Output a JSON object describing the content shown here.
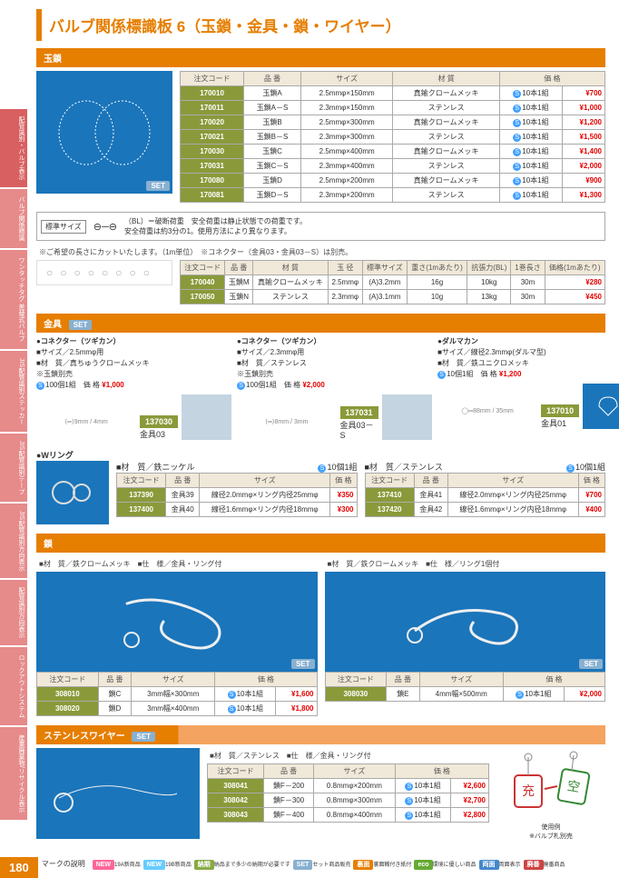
{
  "title": "バルブ関係標識板 6（玉鎖・金具・鎖・ワイヤー）",
  "sidebar": [
    "バルブ関係標識",
    "ワンタッチタグ 差替式バルブ",
    "JIS配管識別ステッカー",
    "JIS配管識別テープ",
    "JIS配管識別方向表示",
    "配管識別方向表示",
    "ロックアウトシステム",
    "産業廃棄物/リサイクル表示"
  ],
  "sidebar_main": "配管識別・バルブ表示",
  "s1": {
    "title": "玉鎖",
    "headers": [
      "注文コード",
      "品 番",
      "サイズ",
      "材 質",
      "",
      "価 格"
    ],
    "rows": [
      {
        "code": "170010",
        "name": "玉鎖A",
        "size": "2.5mmφ×150mm",
        "mat": "真鍮クロームメッキ",
        "qty": "10本1組",
        "price": "¥700"
      },
      {
        "code": "170011",
        "name": "玉鎖A－S",
        "size": "2.3mmφ×150mm",
        "mat": "ステンレス",
        "qty": "10本1組",
        "price": "¥1,000"
      },
      {
        "code": "170020",
        "name": "玉鎖B",
        "size": "2.5mmφ×300mm",
        "mat": "真鍮クロームメッキ",
        "qty": "10本1組",
        "price": "¥1,200"
      },
      {
        "code": "170021",
        "name": "玉鎖B－S",
        "size": "2.3mmφ×300mm",
        "mat": "ステンレス",
        "qty": "10本1組",
        "price": "¥1,500"
      },
      {
        "code": "170030",
        "name": "玉鎖C",
        "size": "2.5mmφ×400mm",
        "mat": "真鍮クロームメッキ",
        "qty": "10本1組",
        "price": "¥1,400"
      },
      {
        "code": "170031",
        "name": "玉鎖C－S",
        "size": "2.3mmφ×400mm",
        "mat": "ステンレス",
        "qty": "10本1組",
        "price": "¥2,000"
      },
      {
        "code": "170080",
        "name": "玉鎖D",
        "size": "2.5mmφ×200mm",
        "mat": "真鍮クロームメッキ",
        "qty": "10本1組",
        "price": "¥900"
      },
      {
        "code": "170081",
        "name": "玉鎖D－S",
        "size": "2.3mmφ×200mm",
        "mat": "ステンレス",
        "qty": "10本1組",
        "price": "¥1,300"
      }
    ]
  },
  "sizenote": {
    "label": "標準サイズ",
    "text1": "（BL）＝破断荷重　安全荷重は静止状態での荷重です。",
    "text2": "安全荷重は約3分の1。使用方法により異なります。",
    "note": "※ご希望の長さにカットいたします。（1m単位）　※コネクター（金具03・金具03－S）は別売。"
  },
  "s2": {
    "headers": [
      "注文コード",
      "品 番",
      "材 質",
      "玉 径",
      "標準サイズ",
      "重さ(1mあたり)",
      "抗張力(BL)",
      "1巻長さ",
      "価格(1mあたり)"
    ],
    "rows": [
      {
        "code": "170040",
        "name": "玉鎖M",
        "mat": "真鍮クロームメッキ",
        "dia": "2.5mmφ",
        "std": "(A)3.2mm",
        "wt": "16g",
        "bl": "10kg",
        "len": "30m",
        "price": "¥280"
      },
      {
        "code": "170050",
        "name": "玉鎖N",
        "mat": "ステンレス",
        "dia": "2.3mmφ",
        "std": "(A)3.1mm",
        "wt": "10g",
        "bl": "13kg",
        "len": "30m",
        "price": "¥450"
      }
    ]
  },
  "s3": {
    "title": "金具",
    "conn1": {
      "title": "●コネクター（ツギカン）",
      "l1": "■サイズ／2.5mmφ用",
      "l2": "■材　質／真ちゅうクロームメッキ",
      "l3": "※玉鎖別売",
      "qty": "100個1組",
      "plabel": "価 格",
      "price": "¥1,000",
      "code": "137030",
      "name": "金具03",
      "dim": "9mm / 4mm"
    },
    "conn2": {
      "title": "●コネクター（ツギカン）",
      "l1": "■サイズ／2.3mmφ用",
      "l2": "■材　質／ステンレス",
      "l3": "※玉鎖別売",
      "qty": "100個1組",
      "plabel": "価 格",
      "price": "¥2,000",
      "code": "137031",
      "name": "金具03－S",
      "dim": "8mm / 3mm"
    },
    "conn3": {
      "title": "●ダルマカン",
      "l1": "■サイズ／線径2.3mmφ(ダルマ型)",
      "l2": "■材　質／鉄ユニクロメッキ",
      "qty": "10個1組",
      "plabel": "価 格",
      "price": "¥1,200",
      "code": "137010",
      "name": "金具01",
      "dim": "88mm / 35mm"
    }
  },
  "wr": {
    "title": "●Wリング",
    "left": {
      "mat": "■材　質／鉄ニッケル",
      "qty": "10個1組",
      "headers": [
        "注文コード",
        "品 番",
        "サイズ",
        "価 格"
      ],
      "rows": [
        {
          "code": "137390",
          "name": "金具39",
          "size": "線径2.0mmφ×リング内径25mmφ",
          "price": "¥350"
        },
        {
          "code": "137400",
          "name": "金具40",
          "size": "線径1.6mmφ×リング内径18mmφ",
          "price": "¥300"
        }
      ]
    },
    "right": {
      "mat": "■材　質／ステンレス",
      "qty": "10個1組",
      "rows": [
        {
          "code": "137410",
          "name": "金具41",
          "size": "線径2.0mmφ×リング内径25mmφ",
          "price": "¥700"
        },
        {
          "code": "137420",
          "name": "金具42",
          "size": "線径1.6mmφ×リング内径18mmφ",
          "price": "¥400"
        }
      ]
    }
  },
  "chain": {
    "title": "鎖",
    "left": {
      "mat": "■材　質／鉄クロームメッキ　■仕　様／金具・リング付",
      "headers": [
        "注文コード",
        "品 番",
        "サイズ",
        "",
        "価 格"
      ],
      "rows": [
        {
          "code": "308010",
          "name": "鎖C",
          "size": "3mm幅×300mm",
          "qty": "10本1組",
          "price": "¥1,600"
        },
        {
          "code": "308020",
          "name": "鎖D",
          "size": "3mm幅×400mm",
          "qty": "10本1組",
          "price": "¥1,800"
        }
      ]
    },
    "right": {
      "mat": "■材　質／鉄クロームメッキ　■仕　様／リング1個付",
      "rows": [
        {
          "code": "308030",
          "name": "鎖E",
          "size": "4mm幅×500mm",
          "qty": "10本1組",
          "price": "¥2,000"
        }
      ]
    }
  },
  "wire": {
    "title": "ステンレスワイヤー",
    "mat": "■材　質／ステンレス　■仕　様／金具・リング付",
    "headers": [
      "注文コード",
      "品 番",
      "サイズ",
      "",
      "価 格"
    ],
    "rows": [
      {
        "code": "308041",
        "name": "鎖F－200",
        "size": "0.8mmφ×200mm",
        "qty": "10本1組",
        "price": "¥2,600"
      },
      {
        "code": "308042",
        "name": "鎖F－300",
        "size": "0.8mmφ×300mm",
        "qty": "10本1組",
        "price": "¥2,700"
      },
      {
        "code": "308043",
        "name": "鎖F－400",
        "size": "0.8mmφ×400mm",
        "qty": "10本1組",
        "price": "¥2,800"
      }
    ],
    "caption": "使用例\n※バルブ札別売"
  },
  "footer": {
    "label": "マークの説明",
    "icons": [
      {
        "t": "NEW",
        "c": "#ff6699",
        "sub": "19A新商品"
      },
      {
        "t": "NEW",
        "c": "#66ccff",
        "sub": "19B新商品"
      },
      {
        "t": "納期",
        "c": "#88aa44",
        "sub": "納品まで多少の納期が必要です"
      },
      {
        "t": "SET",
        "c": "#88b0d0",
        "sub": "セット商品販売"
      },
      {
        "t": "裏面",
        "c": "#e67e00",
        "sub": "裏面糊付き紙付"
      },
      {
        "t": "eco",
        "c": "#66aa33",
        "sub": "環境に優しい商品"
      },
      {
        "t": "両面",
        "c": "#4488cc",
        "sub": "両面表示"
      },
      {
        "t": "廃番",
        "c": "#cc4444",
        "sub": "廃番商品"
      }
    ]
  },
  "page": "180"
}
